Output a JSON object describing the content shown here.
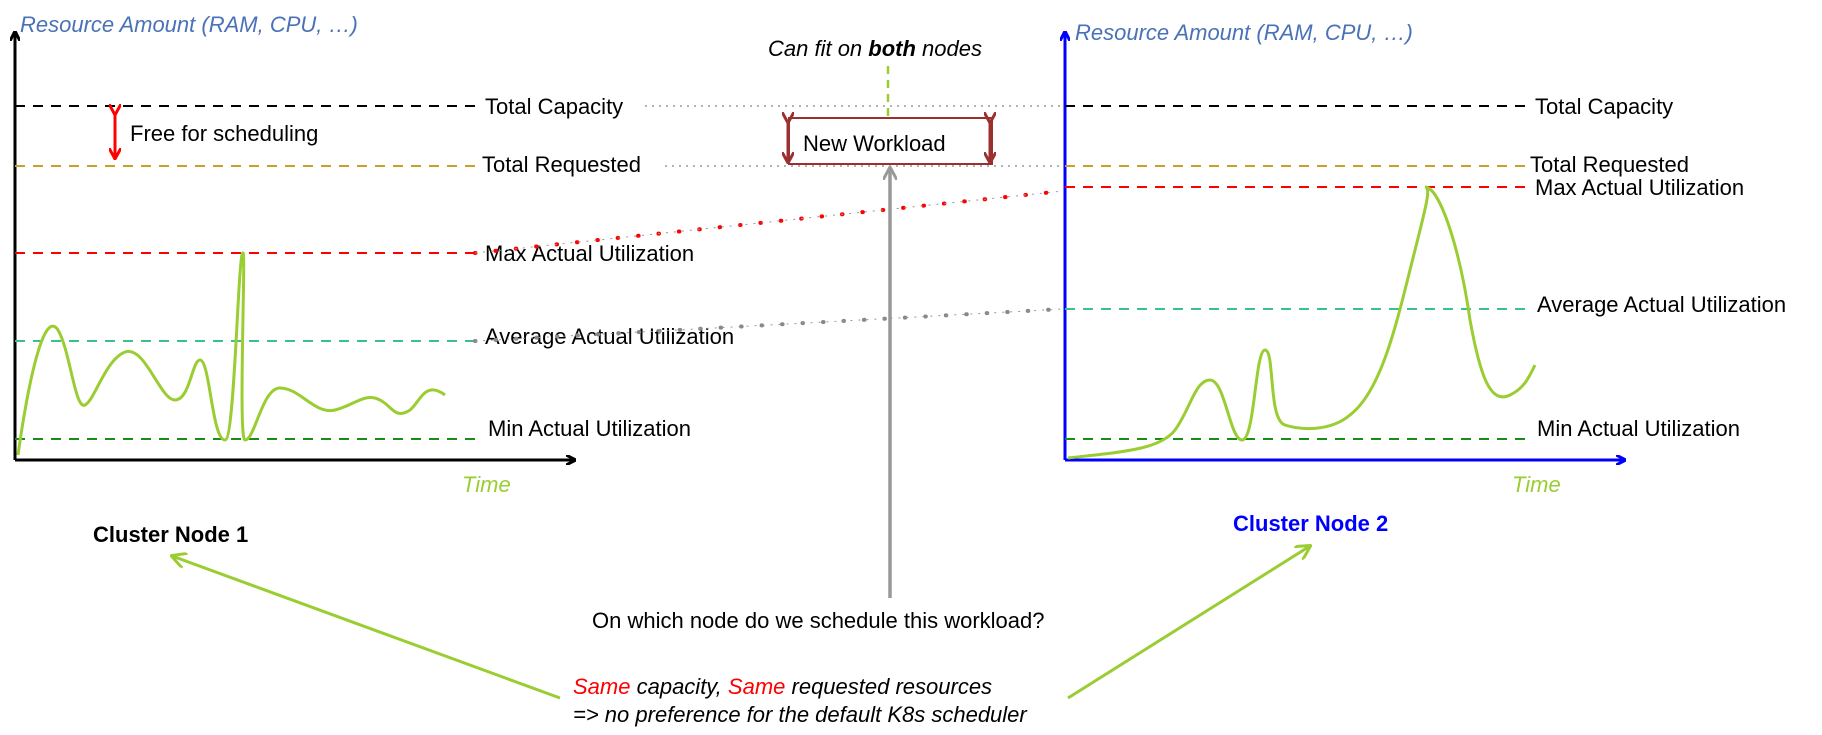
{
  "colors": {
    "axis_left": "#000000",
    "axis_right": "#0000ff",
    "axis_title": "#4a72b8",
    "time_label": "#9acd32",
    "curve": "#9acd32",
    "total_capacity": "#000000",
    "total_requested": "#c8a02a",
    "max_actual": "#ff0000",
    "average_actual": "#3cc08a",
    "min_actual": "#1a8c1a",
    "free_arrow": "#ff0000",
    "workload_box": "#9a3030",
    "question_arrow": "#999999",
    "pointer_arrows": "#9acd32",
    "same_highlight": "#ff0000",
    "node2_title": "#0000ff"
  },
  "left_node": {
    "axis_title": "Resource Amount (RAM, CPU, …)",
    "time_label": "Time",
    "title": "Cluster Node 1",
    "free_label": "Free for scheduling",
    "levels": {
      "total_capacity": "Total Capacity",
      "total_requested": "Total Requested",
      "max_actual": "Max Actual Utilization",
      "average_actual": "Average Actual Utilization",
      "min_actual": "Min Actual Utilization"
    }
  },
  "right_node": {
    "axis_title": "Resource Amount (RAM, CPU, …)",
    "time_label": "Time",
    "title": "Cluster Node 2",
    "levels": {
      "total_capacity": "Total Capacity",
      "total_requested": "Total Requested",
      "max_actual": "Max Actual Utilization",
      "average_actual": "Average Actual Utilization",
      "min_actual": "Min Actual Utilization"
    }
  },
  "workload": {
    "fit_prefix": "Can fit on ",
    "fit_emphasis": "both",
    "fit_suffix": " nodes",
    "box_label": "New Workload",
    "question": "On which node do we schedule this workload?"
  },
  "footer": {
    "same_1": "Same",
    "capacity_text": " capacity, ",
    "same_2": "Same",
    "requested_text": " requested resources",
    "line2": "=> no preference for the default K8s scheduler"
  }
}
